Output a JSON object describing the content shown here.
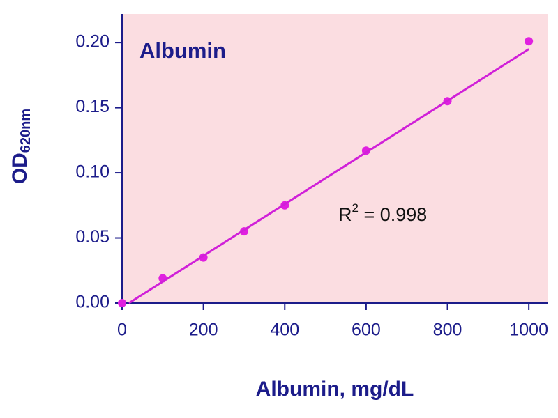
{
  "chart_data": {
    "type": "scatter",
    "title": "Albumin",
    "xlabel": "Albumin, mg/dL",
    "ylabel": {
      "text": "OD",
      "subscript": "620nm"
    },
    "annotation": {
      "text": "R",
      "superscript": "2",
      "rest": " = 0.998"
    },
    "series": [
      {
        "color": "#e020e0",
        "x": [
          0,
          100,
          200,
          300,
          400,
          600,
          800,
          1000
        ],
        "values": [
          0.0,
          0.019,
          0.035,
          0.055,
          0.075,
          0.117,
          0.155,
          0.201
        ]
      },
      {
        "color": "#d020d8",
        "x": [
          17,
          1000
        ],
        "values": [
          0,
          0.195
        ],
        "style": "line"
      }
    ],
    "xlim": [
      0,
      1046
    ],
    "ylim": [
      0,
      0.222
    ],
    "xticks": [
      0,
      200,
      400,
      600,
      800,
      1000
    ],
    "yticks": [
      {
        "value": 0,
        "label": "0.00"
      },
      {
        "value": 0.05,
        "label": "0.05"
      },
      {
        "value": 0.1,
        "label": "0.10"
      },
      {
        "value": 0.15,
        "label": "0.15"
      },
      {
        "value": 0.2,
        "label": "0.20"
      }
    ],
    "background": "#fbdde1",
    "axis_color": "#1c1c8a"
  }
}
